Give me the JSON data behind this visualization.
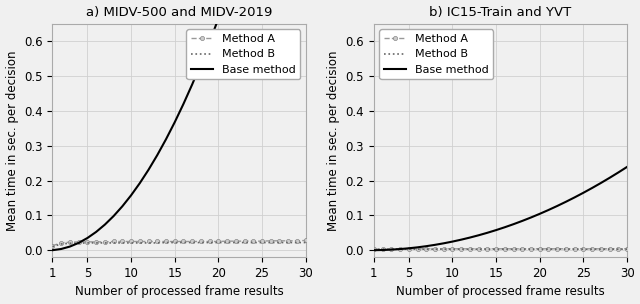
{
  "title_a": "a) MIDV-500 and MIDV-2019",
  "title_b": "b) IC15-Train and YVT",
  "xlabel": "Number of processed frame results",
  "ylabel": "Mean time in sec. per decision",
  "x": [
    1,
    2,
    3,
    4,
    5,
    6,
    7,
    8,
    9,
    10,
    11,
    12,
    13,
    14,
    15,
    16,
    17,
    18,
    19,
    20,
    21,
    22,
    23,
    24,
    25,
    26,
    27,
    28,
    29,
    30
  ],
  "base_a_scale": 0.0035,
  "base_b_scale": 0.00055,
  "method_a_a": [
    0.013,
    0.021,
    0.023,
    0.024,
    0.024,
    0.024,
    0.024,
    0.025,
    0.025,
    0.025,
    0.025,
    0.025,
    0.025,
    0.025,
    0.025,
    0.025,
    0.025,
    0.025,
    0.025,
    0.025,
    0.026,
    0.026,
    0.026,
    0.026,
    0.026,
    0.027,
    0.027,
    0.027,
    0.027,
    0.028
  ],
  "method_b_a": [
    0.01,
    0.018,
    0.02,
    0.02,
    0.021,
    0.021,
    0.021,
    0.021,
    0.021,
    0.021,
    0.021,
    0.021,
    0.021,
    0.022,
    0.022,
    0.022,
    0.022,
    0.022,
    0.022,
    0.022,
    0.022,
    0.022,
    0.022,
    0.022,
    0.022,
    0.022,
    0.022,
    0.022,
    0.022,
    0.022
  ],
  "method_a_b": [
    0.003,
    0.004,
    0.004,
    0.004,
    0.004,
    0.004,
    0.004,
    0.004,
    0.004,
    0.004,
    0.004,
    0.004,
    0.004,
    0.004,
    0.004,
    0.004,
    0.004,
    0.004,
    0.004,
    0.004,
    0.004,
    0.004,
    0.004,
    0.004,
    0.004,
    0.004,
    0.004,
    0.004,
    0.004,
    0.004
  ],
  "method_b_b": [
    0.002,
    0.003,
    0.003,
    0.003,
    0.003,
    0.003,
    0.003,
    0.003,
    0.003,
    0.003,
    0.003,
    0.003,
    0.003,
    0.003,
    0.003,
    0.003,
    0.003,
    0.003,
    0.003,
    0.003,
    0.003,
    0.003,
    0.003,
    0.003,
    0.003,
    0.003,
    0.003,
    0.003,
    0.003,
    0.003
  ],
  "ylim": [
    -0.02,
    0.65
  ],
  "yticks": [
    0.0,
    0.1,
    0.2,
    0.3,
    0.4,
    0.5,
    0.6
  ],
  "xticks": [
    1,
    5,
    10,
    15,
    20,
    25,
    30
  ],
  "color_base": "#000000",
  "color_method_a": "#999999",
  "color_method_b": "#666666",
  "figsize": [
    6.4,
    3.04
  ],
  "dpi": 100,
  "bg_color": "#f0f0f0"
}
